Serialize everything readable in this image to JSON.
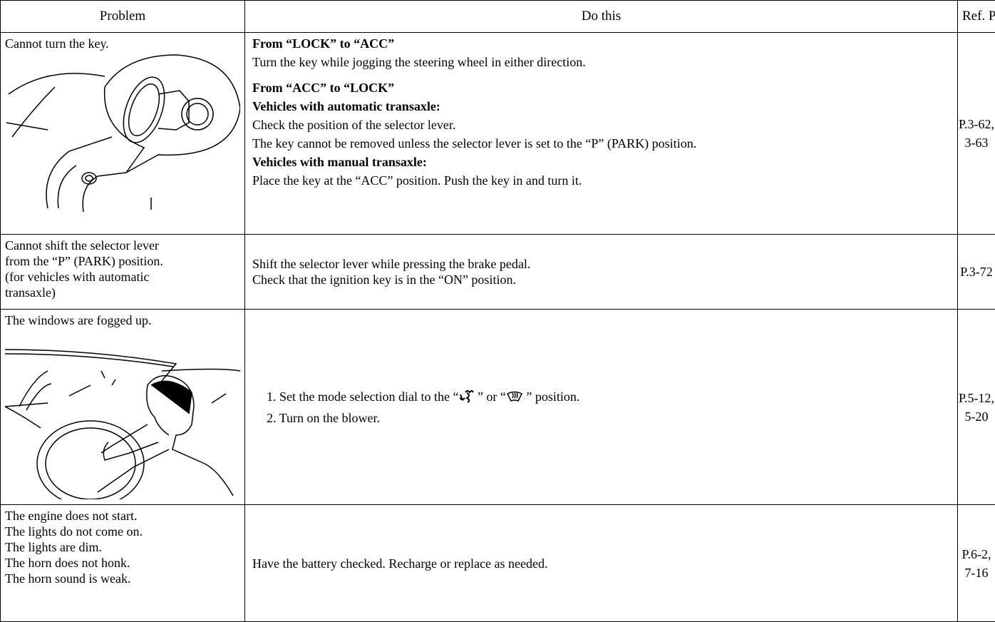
{
  "table": {
    "headers": [
      "Problem",
      "Do this",
      "Ref. Page"
    ],
    "rows": [
      {
        "problem": [
          "Cannot turn the key."
        ],
        "do_this": {
          "section1": {
            "heading": "From “LOCK” to “ACC”",
            "lines": [
              "Turn the key while jogging the steering wheel in either direction."
            ]
          },
          "section2": {
            "heading": "From “ACC” to “LOCK”",
            "auto": {
              "heading": "Vehicles with automatic transaxle:",
              "lines": [
                "Check the position of the selector lever.",
                "The key cannot be removed unless the selector lever is set to the “P” (PARK) position."
              ]
            },
            "manual": {
              "heading": "Vehicles with manual transaxle:",
              "lines": [
                "Place the key at the “ACC” position. Push the key in and turn it."
              ]
            }
          }
        },
        "ref": [
          "P.3-62,",
          "3-63"
        ]
      },
      {
        "problem": [
          "Cannot shift the selector lever",
          "from the “P” (PARK) position.",
          "(for vehicles with automatic",
          "transaxle)"
        ],
        "do_this": {
          "lines": [
            "Shift the selector lever while pressing the brake pedal.",
            "Check that the ignition key is in the “ON” position."
          ]
        },
        "ref": [
          "P.3-72"
        ]
      },
      {
        "problem": [
          "The windows are fogged up."
        ],
        "do_this": {
          "step1": [
            "1. Set the mode selection dial to the “",
            " ” or “",
            " ” position."
          ],
          "step2": "2. Turn on the blower."
        },
        "ref": [
          "P.5-12,",
          "5-20"
        ]
      },
      {
        "problem": [
          "The engine does not start.",
          "The lights do not come on.",
          "The lights are dim.",
          "The horn does not honk.",
          "The horn sound is weak."
        ],
        "do_this": {
          "lines": [
            "Have the battery checked. Recharge or replace as needed."
          ]
        },
        "ref": [
          "P.6-2,",
          "7-16"
        ]
      }
    ]
  }
}
